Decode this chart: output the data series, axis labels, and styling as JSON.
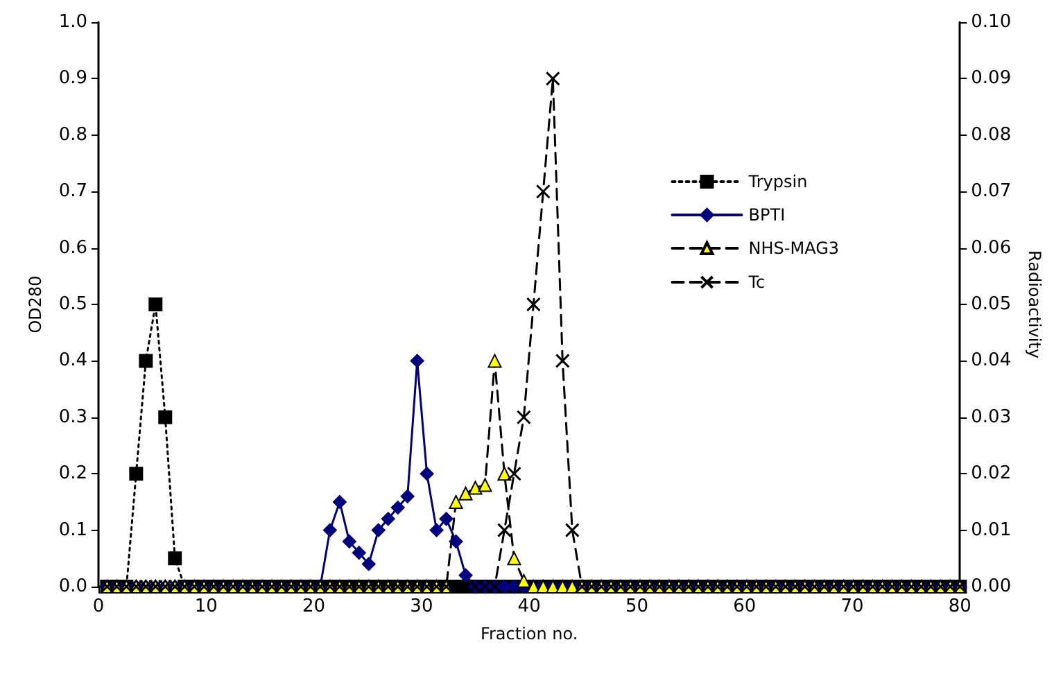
{
  "chart_data": {
    "type": "line",
    "xlabel": "Fraction no.",
    "ylabel": "OD280",
    "y2label": "Radioactivity",
    "x": [
      0.8,
      1.7,
      2.6,
      3.5,
      4.4,
      5.3,
      6.2,
      7.1,
      8,
      8.9,
      9.8,
      10.7,
      11.6,
      12.5,
      13.4,
      14.3,
      15.2,
      16.1,
      17,
      17.9,
      18.8,
      19.7,
      20.6,
      21.5,
      22.4,
      23.3,
      24.2,
      25.1,
      26,
      26.9,
      27.8,
      28.7,
      29.6,
      30.5,
      31.4,
      32.3,
      33.2,
      34.1,
      35,
      35.9,
      36.8,
      37.7,
      38.6,
      39.5,
      40.4,
      41.3,
      42.2,
      43.1,
      44,
      44.9,
      45.8,
      46.7,
      47.6,
      48.5,
      49.4,
      50.3,
      51.2,
      52.1,
      53,
      53.9,
      54.8,
      55.7,
      56.6,
      57.5,
      58.4,
      59.3,
      60.2,
      61.1,
      62,
      62.9,
      63.8,
      64.7,
      65.6,
      66.5,
      67.4,
      68.3,
      69.2,
      70.1,
      71,
      71.9,
      72.8,
      73.7,
      74.6,
      75.5,
      76.4,
      77.3,
      78.2,
      79.1,
      80
    ],
    "series": [
      {
        "name": "Trypsin",
        "color": "#000000",
        "marker": "square",
        "line_style": "dotted",
        "values": [
          0,
          0,
          0,
          0.2,
          0.4,
          0.5,
          0.3,
          0.05,
          0,
          0,
          0,
          0,
          0,
          0,
          0,
          0,
          0,
          0,
          0,
          0,
          0,
          0,
          0,
          0,
          0,
          0,
          0,
          0,
          0,
          0,
          0,
          0,
          0,
          0,
          0,
          0,
          0,
          0,
          0,
          0,
          0,
          0,
          0,
          0,
          0,
          0,
          0,
          0,
          0,
          0,
          0,
          0,
          0,
          0,
          0,
          0,
          0,
          0,
          0,
          0,
          0,
          0,
          0,
          0,
          0,
          0,
          0,
          0,
          0,
          0,
          0,
          0,
          0,
          0,
          0,
          0,
          0,
          0,
          0,
          0,
          0,
          0,
          0,
          0,
          0,
          0,
          0,
          0,
          0
        ]
      },
      {
        "name": "BPTI",
        "color": "#000080",
        "marker": "diamond",
        "line_style": "solid",
        "values": [
          0,
          0,
          0,
          0,
          0,
          0,
          0,
          0,
          0,
          0,
          0,
          0,
          0,
          0,
          0,
          0,
          0,
          0,
          0,
          0,
          0,
          0,
          0,
          0.1,
          0.15,
          0.08,
          0.06,
          0.04,
          0.1,
          0.12,
          0.14,
          0.16,
          0.4,
          0.2,
          0.1,
          0.12,
          0.08,
          0.02,
          0,
          0,
          0,
          0,
          0,
          0,
          0,
          0,
          0,
          0,
          0,
          0,
          0,
          0,
          0,
          0,
          0,
          0,
          0,
          0,
          0,
          0,
          0,
          0,
          0,
          0,
          0,
          0,
          0,
          0,
          0,
          0,
          0,
          0,
          0,
          0,
          0,
          0,
          0,
          0,
          0,
          0,
          0,
          0,
          0,
          0,
          0,
          0,
          0,
          0,
          0
        ]
      },
      {
        "name": "NHS-MAG3",
        "color": "#ffff00",
        "marker": "triangle",
        "line_style": "dashed",
        "values": [
          0,
          0,
          0,
          0,
          0,
          0,
          0,
          0,
          0,
          0,
          0,
          0,
          0,
          0,
          0,
          0,
          0,
          0,
          0,
          0,
          0,
          0,
          0,
          0,
          0,
          0,
          0,
          0,
          0,
          0,
          0,
          0,
          0,
          0,
          0,
          0,
          0.15,
          0.165,
          0.175,
          0.18,
          0.4,
          0.2,
          0.05,
          0.01,
          0,
          0,
          0,
          0,
          0,
          0,
          0,
          0,
          0,
          0,
          0,
          0,
          0,
          0,
          0,
          0,
          0,
          0,
          0,
          0,
          0,
          0,
          0,
          0,
          0,
          0,
          0,
          0,
          0,
          0,
          0,
          0,
          0,
          0,
          0,
          0,
          0,
          0,
          0,
          0,
          0,
          0,
          0,
          0,
          0
        ]
      },
      {
        "name": "Tc",
        "color": "#000000",
        "marker": "cross",
        "line_style": "dashed",
        "axis": "y2",
        "values": [
          0,
          0,
          0,
          0,
          0,
          0,
          0,
          0,
          0,
          0,
          0,
          0,
          0,
          0,
          0,
          0,
          0,
          0,
          0,
          0,
          0,
          0,
          0,
          0,
          0,
          0,
          0,
          0,
          0,
          0,
          0,
          0,
          0,
          0,
          0,
          0,
          0,
          0,
          0,
          0,
          0,
          0.01,
          0.02,
          0.03,
          0.05,
          0.07,
          0.09,
          0.04,
          0.01,
          0,
          0,
          0,
          0,
          0,
          0,
          0,
          0,
          0,
          0,
          0,
          0,
          0,
          0,
          0,
          0,
          0,
          0,
          0,
          0,
          0,
          0,
          0,
          0,
          0,
          0,
          0,
          0,
          0,
          0,
          0,
          0,
          0,
          0,
          0,
          0,
          0,
          0,
          0,
          0
        ]
      }
    ],
    "xlim": [
      0,
      80
    ],
    "xticks": [
      0,
      10,
      20,
      30,
      40,
      50,
      60,
      70,
      80
    ],
    "ylim": [
      0,
      1
    ],
    "yticks": [
      {
        "value": 0,
        "label": "0.0"
      },
      {
        "value": 0.1,
        "label": "0.1"
      },
      {
        "value": 0.2,
        "label": "0.2"
      },
      {
        "value": 0.3,
        "label": "0.3"
      },
      {
        "value": 0.4,
        "label": "0.4"
      },
      {
        "value": 0.5,
        "label": "0.5"
      },
      {
        "value": 0.6,
        "label": "0.6"
      },
      {
        "value": 0.7,
        "label": "0.7"
      },
      {
        "value": 0.8,
        "label": "0.8"
      },
      {
        "value": 0.9,
        "label": "0.9"
      },
      {
        "value": 1,
        "label": "1.0"
      }
    ],
    "y2lim": [
      0,
      0.1
    ],
    "y2ticks": [
      {
        "value": 0,
        "label": "0.00"
      },
      {
        "value": 0.01,
        "label": "0.01"
      },
      {
        "value": 0.02,
        "label": "0.02"
      },
      {
        "value": 0.03,
        "label": "0.03"
      },
      {
        "value": 0.04,
        "label": "0.04"
      },
      {
        "value": 0.05,
        "label": "0.05"
      },
      {
        "value": 0.06,
        "label": "0.06"
      },
      {
        "value": 0.07,
        "label": "0.07"
      },
      {
        "value": 0.08,
        "label": "0.08"
      },
      {
        "value": 0.09,
        "label": "0.09"
      },
      {
        "value": 0.1,
        "label": "0.10"
      }
    ],
    "grid": false,
    "legend": "top right"
  }
}
